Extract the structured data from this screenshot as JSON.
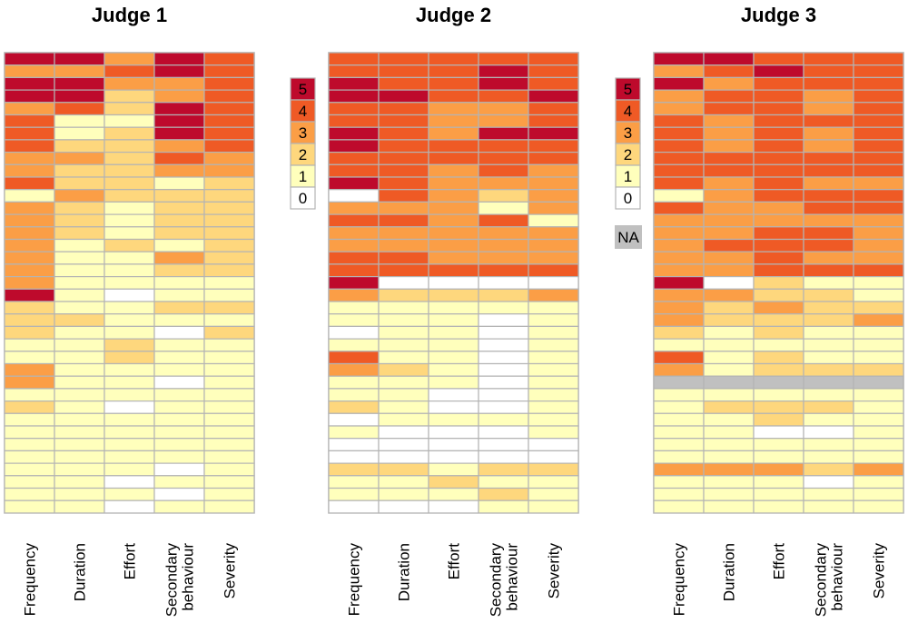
{
  "chart_data": {
    "type": "heatmap",
    "scale_levels": [
      "0",
      "1",
      "2",
      "3",
      "4",
      "5"
    ],
    "legend_labels": [
      "5",
      "4",
      "3",
      "2",
      "1",
      "0"
    ],
    "na_label": "NA",
    "colors": {
      "0": "#ffffff",
      "1": "#ffffbc",
      "2": "#fed77d",
      "3": "#fb9e46",
      "4": "#ef5a25",
      "5": "#be0a2c",
      "NA": "#c0c0c0"
    },
    "grid_color": "#b4b4b4",
    "columns": [
      {
        "id": "frequency",
        "lines": [
          "Frequency"
        ]
      },
      {
        "id": "duration",
        "lines": [
          "Duration"
        ]
      },
      {
        "id": "effort",
        "lines": [
          "Effort"
        ]
      },
      {
        "id": "secondary",
        "lines": [
          "Secondary",
          "behaviour"
        ]
      },
      {
        "id": "severity",
        "lines": [
          "Severity"
        ]
      }
    ],
    "panels": [
      {
        "title": "Judge 1",
        "rows": [
          [
            5,
            5,
            3,
            5,
            4
          ],
          [
            3,
            3,
            4,
            5,
            4
          ],
          [
            5,
            5,
            3,
            3,
            4
          ],
          [
            5,
            5,
            2,
            3,
            4
          ],
          [
            3,
            4,
            2,
            5,
            4
          ],
          [
            4,
            1,
            1,
            5,
            4
          ],
          [
            4,
            1,
            2,
            5,
            4
          ],
          [
            4,
            2,
            2,
            3,
            4
          ],
          [
            3,
            3,
            2,
            4,
            3
          ],
          [
            3,
            2,
            2,
            3,
            3
          ],
          [
            4,
            2,
            2,
            1,
            2
          ],
          [
            1,
            3,
            2,
            2,
            2
          ],
          [
            3,
            2,
            1,
            2,
            2
          ],
          [
            3,
            2,
            1,
            2,
            2
          ],
          [
            3,
            2,
            1,
            2,
            2
          ],
          [
            3,
            1,
            2,
            1,
            2
          ],
          [
            3,
            1,
            1,
            3,
            2
          ],
          [
            3,
            1,
            1,
            2,
            2
          ],
          [
            3,
            1,
            1,
            1,
            1
          ],
          [
            5,
            1,
            0,
            1,
            1
          ],
          [
            2,
            1,
            1,
            2,
            2
          ],
          [
            2,
            2,
            1,
            1,
            1
          ],
          [
            2,
            1,
            1,
            0,
            2
          ],
          [
            1,
            1,
            2,
            1,
            1
          ],
          [
            1,
            1,
            2,
            1,
            1
          ],
          [
            3,
            1,
            1,
            1,
            1
          ],
          [
            3,
            1,
            1,
            0,
            1
          ],
          [
            1,
            1,
            1,
            1,
            1
          ],
          [
            2,
            1,
            0,
            1,
            1
          ],
          [
            1,
            1,
            1,
            1,
            1
          ],
          [
            1,
            1,
            1,
            1,
            1
          ],
          [
            1,
            1,
            1,
            1,
            1
          ],
          [
            1,
            1,
            1,
            1,
            1
          ],
          [
            1,
            1,
            1,
            0,
            1
          ],
          [
            1,
            1,
            0,
            1,
            1
          ],
          [
            1,
            1,
            1,
            0,
            1
          ],
          [
            1,
            1,
            0,
            1,
            1
          ]
        ]
      },
      {
        "title": "Judge 2",
        "rows": [
          [
            4,
            4,
            4,
            4,
            4
          ],
          [
            4,
            4,
            4,
            5,
            4
          ],
          [
            5,
            4,
            4,
            5,
            4
          ],
          [
            5,
            5,
            4,
            4,
            5
          ],
          [
            4,
            4,
            3,
            3,
            4
          ],
          [
            4,
            4,
            3,
            3,
            4
          ],
          [
            5,
            4,
            3,
            5,
            5
          ],
          [
            5,
            4,
            4,
            4,
            4
          ],
          [
            4,
            4,
            4,
            4,
            4
          ],
          [
            4,
            4,
            3,
            4,
            3
          ],
          [
            5,
            4,
            3,
            3,
            3
          ],
          [
            0,
            4,
            3,
            2,
            3
          ],
          [
            3,
            3,
            3,
            1,
            3
          ],
          [
            4,
            4,
            3,
            4,
            1
          ],
          [
            3,
            3,
            3,
            3,
            3
          ],
          [
            3,
            3,
            3,
            3,
            3
          ],
          [
            4,
            4,
            3,
            3,
            3
          ],
          [
            4,
            4,
            4,
            4,
            4
          ],
          [
            5,
            0,
            0,
            0,
            0
          ],
          [
            3,
            2,
            2,
            2,
            3
          ],
          [
            1,
            1,
            1,
            1,
            1
          ],
          [
            1,
            1,
            1,
            0,
            1
          ],
          [
            0,
            1,
            1,
            0,
            1
          ],
          [
            1,
            1,
            1,
            0,
            1
          ],
          [
            4,
            1,
            1,
            0,
            1
          ],
          [
            3,
            2,
            1,
            0,
            1
          ],
          [
            1,
            1,
            1,
            0,
            1
          ],
          [
            1,
            1,
            0,
            0,
            1
          ],
          [
            2,
            1,
            0,
            0,
            1
          ],
          [
            0,
            1,
            1,
            1,
            1
          ],
          [
            1,
            0,
            0,
            0,
            1
          ],
          [
            0,
            0,
            0,
            0,
            0
          ],
          [
            0,
            0,
            0,
            0,
            0
          ],
          [
            2,
            2,
            1,
            2,
            2
          ],
          [
            1,
            1,
            2,
            1,
            1
          ],
          [
            1,
            1,
            1,
            2,
            1
          ],
          [
            0,
            0,
            0,
            1,
            1
          ]
        ]
      },
      {
        "title": "Judge 3",
        "rows": [
          [
            5,
            5,
            4,
            4,
            4
          ],
          [
            3,
            4,
            5,
            4,
            4
          ],
          [
            5,
            3,
            4,
            4,
            4
          ],
          [
            3,
            4,
            4,
            3,
            4
          ],
          [
            3,
            4,
            4,
            3,
            4
          ],
          [
            4,
            3,
            4,
            4,
            4
          ],
          [
            4,
            3,
            4,
            3,
            4
          ],
          [
            4,
            3,
            4,
            3,
            4
          ],
          [
            4,
            4,
            4,
            4,
            4
          ],
          [
            4,
            4,
            4,
            4,
            4
          ],
          [
            4,
            3,
            4,
            3,
            3
          ],
          [
            1,
            3,
            4,
            4,
            4
          ],
          [
            4,
            3,
            3,
            4,
            4
          ],
          [
            3,
            3,
            3,
            3,
            3
          ],
          [
            3,
            3,
            4,
            4,
            3
          ],
          [
            3,
            4,
            4,
            4,
            3
          ],
          [
            3,
            3,
            4,
            3,
            3
          ],
          [
            3,
            3,
            4,
            4,
            4
          ],
          [
            5,
            0,
            2,
            1,
            1
          ],
          [
            3,
            3,
            2,
            2,
            1
          ],
          [
            3,
            2,
            3,
            2,
            2
          ],
          [
            3,
            2,
            2,
            2,
            3
          ],
          [
            2,
            1,
            2,
            1,
            1
          ],
          [
            1,
            1,
            1,
            1,
            1
          ],
          [
            4,
            1,
            2,
            1,
            1
          ],
          [
            3,
            1,
            2,
            2,
            2
          ],
          [
            "NA",
            "NA",
            "NA",
            "NA",
            "NA"
          ],
          [
            1,
            1,
            1,
            1,
            1
          ],
          [
            1,
            2,
            2,
            2,
            1
          ],
          [
            1,
            1,
            2,
            1,
            1
          ],
          [
            1,
            1,
            0,
            0,
            1
          ],
          [
            1,
            1,
            1,
            1,
            1
          ],
          [
            1,
            1,
            1,
            1,
            1
          ],
          [
            3,
            3,
            3,
            2,
            3
          ],
          [
            1,
            1,
            1,
            0,
            1
          ],
          [
            1,
            1,
            1,
            1,
            1
          ],
          [
            1,
            1,
            1,
            1,
            1
          ]
        ]
      }
    ]
  }
}
